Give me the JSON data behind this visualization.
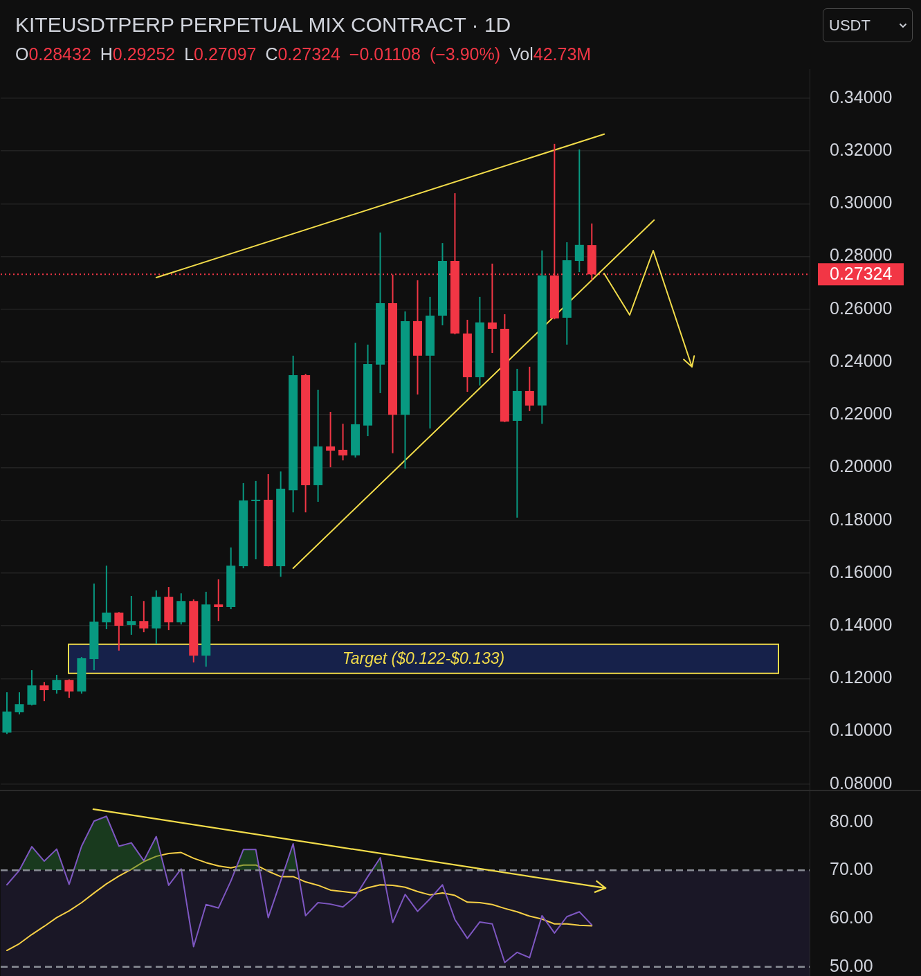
{
  "chart_data": [
    {
      "type": "candlestick",
      "title": "KITEUSDTPERP PERPETUAL MIX CONTRACT · 1D",
      "subtitle": "O0.28432 H0.29252 L0.27097 C0.27324 −0.01108 (−3.90%) Vol42.73M",
      "annotations": [
        "USDT"
      ],
      "categories": [
        null,
        null,
        null,
        null,
        null,
        null,
        null,
        null,
        null,
        null,
        null,
        null,
        null,
        null,
        null,
        null,
        null,
        null,
        null,
        null,
        null,
        null,
        null,
        null,
        null,
        null,
        null,
        null,
        null,
        null,
        null,
        null,
        null,
        null,
        null,
        null,
        null,
        null,
        null,
        null,
        null,
        null,
        null,
        null,
        null,
        null,
        null,
        null,
        null,
        null,
        null,
        null,
        null,
        null,
        null,
        null,
        null,
        null,
        null,
        null,
        null,
        null,
        null,
        null,
        null
      ],
      "ohlc": [
        [
          0.0995,
          0.1148,
          0.099,
          0.1075
        ],
        [
          0.1072,
          0.1148,
          0.1064,
          0.1103
        ],
        [
          0.1101,
          0.1232,
          0.1098,
          0.1174
        ],
        [
          0.1174,
          0.1187,
          0.1114,
          0.1156
        ],
        [
          0.1156,
          0.1214,
          0.1143,
          0.1195
        ],
        [
          0.1195,
          0.1197,
          0.1127,
          0.1151
        ],
        [
          0.1151,
          0.1282,
          0.1143,
          0.1277
        ],
        [
          0.1274,
          0.156,
          0.1232,
          0.1416
        ],
        [
          0.1413,
          0.1628,
          0.1387,
          0.145
        ],
        [
          0.145,
          0.1452,
          0.1306,
          0.14
        ],
        [
          0.1403,
          0.1513,
          0.1366,
          0.1418
        ],
        [
          0.1418,
          0.1494,
          0.1376,
          0.139
        ],
        [
          0.139,
          0.1534,
          0.1332,
          0.151
        ],
        [
          0.151,
          0.1547,
          0.1384,
          0.1413
        ],
        [
          0.1413,
          0.1523,
          0.1405,
          0.1494
        ],
        [
          0.1494,
          0.15,
          0.1261,
          0.1287
        ],
        [
          0.1287,
          0.1529,
          0.1245,
          0.1481
        ],
        [
          0.1481,
          0.1576,
          0.1418,
          0.1471
        ],
        [
          0.1471,
          0.1697,
          0.1463,
          0.1628
        ],
        [
          0.1626,
          0.1941,
          0.1618,
          0.1875
        ],
        [
          0.1875,
          0.1949,
          0.1652,
          0.1878
        ],
        [
          0.1878,
          0.1975,
          0.1625,
          0.1626
        ],
        [
          0.1626,
          0.1985,
          0.1586,
          0.192
        ],
        [
          0.1914,
          0.2424,
          0.183,
          0.235
        ],
        [
          0.235,
          0.2355,
          0.183,
          0.1933
        ],
        [
          0.1933,
          0.2295,
          0.187,
          0.208
        ],
        [
          0.208,
          0.2211,
          0.2001,
          0.2064
        ],
        [
          0.2067,
          0.2166,
          0.2027,
          0.2046
        ],
        [
          0.2046,
          0.2473,
          0.2038,
          0.2164
        ],
        [
          0.2159,
          0.2466,
          0.2119,
          0.2392
        ],
        [
          0.239,
          0.2891,
          0.2282,
          0.2623
        ],
        [
          0.2623,
          0.2731,
          0.2054,
          0.22
        ],
        [
          0.22,
          0.2592,
          0.1996,
          0.2555
        ],
        [
          0.2555,
          0.271,
          0.2277,
          0.2424
        ],
        [
          0.2424,
          0.2647,
          0.2148,
          0.2576
        ],
        [
          0.2576,
          0.2851,
          0.2539,
          0.2783
        ],
        [
          0.2783,
          0.304,
          0.2505,
          0.2508
        ],
        [
          0.2508,
          0.256,
          0.2287,
          0.2342
        ],
        [
          0.2342,
          0.2647,
          0.2311,
          0.255
        ],
        [
          0.255,
          0.2773,
          0.2434,
          0.2526
        ],
        [
          0.2526,
          0.2581,
          0.2172,
          0.2174
        ],
        [
          0.2177,
          0.2374,
          0.181,
          0.229
        ],
        [
          0.229,
          0.2382,
          0.2214,
          0.2235
        ],
        [
          0.2235,
          0.2823,
          0.2166,
          0.2728
        ],
        [
          0.2728,
          0.3227,
          0.2562,
          0.2565
        ],
        [
          0.2568,
          0.2854,
          0.2466,
          0.2786
        ],
        [
          0.2783,
          0.3206,
          0.2741,
          0.2844
        ],
        [
          0.28432,
          0.29252,
          0.27097,
          0.27324
        ],
        null,
        null,
        null,
        null,
        null,
        null,
        null,
        null,
        null,
        null,
        null,
        null,
        null,
        null,
        null,
        null,
        null
      ],
      "colors": [
        "#089981",
        "#089981",
        "#089981",
        "#f23645",
        "#089981",
        "#f23645",
        "#089981",
        "#089981",
        "#089981",
        "#f23645",
        "#089981",
        "#f23645",
        "#089981",
        "#f23645",
        "#089981",
        "#f23645",
        "#089981",
        "#f23645",
        "#089981",
        "#089981",
        "#089981",
        "#f23645",
        "#089981",
        "#089981",
        "#f23645",
        "#089981",
        "#f23645",
        "#f23645",
        "#089981",
        "#089981",
        "#089981",
        "#f23645",
        "#089981",
        "#f23645",
        "#089981",
        "#089981",
        "#f23645",
        "#f23645",
        "#089981",
        "#f23645",
        "#f23645",
        "#089981",
        "#f23645",
        "#089981",
        "#f23645",
        "#089981",
        "#089981",
        "#f23645",
        null,
        null,
        null,
        null,
        null,
        null,
        null,
        null,
        null,
        null,
        null,
        null,
        null,
        null,
        null,
        null,
        null
      ],
      "series": [
        {
          "type": "line",
          "color": "#f2dc4a",
          "values": [
            null,
            null,
            null,
            null,
            null,
            null,
            null,
            null,
            null,
            null,
            null,
            null,
            0.272,
            null,
            null,
            null,
            null,
            null,
            null,
            null,
            null,
            null,
            null,
            null,
            null,
            null,
            null,
            null,
            null,
            null,
            null,
            null,
            null,
            null,
            null,
            null,
            null,
            null,
            null,
            null,
            null,
            null,
            null,
            null,
            null,
            null,
            null,
            null,
            0.3264,
            null,
            null,
            null,
            null,
            null,
            null,
            null,
            null,
            null,
            null,
            null,
            null,
            null,
            null,
            null,
            null
          ]
        },
        {
          "type": "line",
          "color": "#f2dc4a",
          "values": [
            null,
            null,
            null,
            null,
            null,
            null,
            null,
            null,
            null,
            null,
            null,
            null,
            null,
            null,
            null,
            null,
            null,
            null,
            null,
            null,
            null,
            null,
            null,
            0.1618,
            null,
            null,
            null,
            null,
            null,
            null,
            null,
            null,
            null,
            null,
            null,
            null,
            null,
            null,
            null,
            null,
            null,
            null,
            null,
            null,
            null,
            null,
            null,
            null,
            null,
            null,
            null,
            null,
            0.2938,
            null,
            null,
            null,
            null,
            null,
            null,
            null,
            null,
            null,
            null,
            null,
            null
          ]
        }
      ],
      "ylim": [
        0.0773,
        0.351
      ],
      "yticks": [
        {
          "value": 0.08,
          "label": "0.08000"
        },
        {
          "value": 0.1,
          "label": "0.10000"
        },
        {
          "value": 0.12,
          "label": "0.12000"
        },
        {
          "value": 0.14,
          "label": "0.14000"
        },
        {
          "value": 0.16,
          "label": "0.16000"
        },
        {
          "value": 0.18,
          "label": "0.18000"
        },
        {
          "value": 0.2,
          "label": "0.20000"
        },
        {
          "value": 0.22,
          "label": "0.22000"
        },
        {
          "value": 0.24,
          "label": "0.24000"
        },
        {
          "value": 0.26,
          "label": "0.26000"
        },
        {
          "value": 0.28,
          "label": "0.28000"
        },
        {
          "value": 0.3,
          "label": "0.30000"
        },
        {
          "value": 0.32,
          "label": "0.32000"
        },
        {
          "value": 0.34,
          "label": "0.34000"
        }
      ],
      "grid": "y",
      "tick_labels": "y",
      "ref_lines": [
        {
          "axis": "y",
          "value": 0.27324,
          "label": "0.27324",
          "color": "#f23645",
          "line_style": "dotted"
        }
      ],
      "bands": [
        {
          "axis": "y",
          "from": 0.122,
          "to": 0.133,
          "label": "Target ($0.122-$0.133)",
          "color": "#16214a"
        }
      ]
    },
    {
      "type": "line",
      "categories": [
        null,
        null,
        null,
        null,
        null,
        null,
        null,
        null,
        null,
        null,
        null,
        null,
        null,
        null,
        null,
        null,
        null,
        null,
        null,
        null,
        null,
        null,
        null,
        null,
        null,
        null,
        null,
        null,
        null,
        null,
        null,
        null,
        null,
        null,
        null,
        null,
        null,
        null,
        null,
        null,
        null,
        null,
        null,
        null,
        null,
        null,
        null,
        null,
        null,
        null,
        null,
        null,
        null,
        null,
        null,
        null,
        null,
        null,
        null,
        null,
        null,
        null,
        null,
        null,
        null
      ],
      "series": [
        {
          "color": "#7e57c2",
          "values": [
            67.0,
            70.0,
            74.9,
            71.9,
            74.4,
            67.1,
            75.0,
            80.2,
            81.2,
            75.0,
            75.7,
            72.0,
            77.0,
            66.9,
            70.3,
            54.2,
            62.9,
            62.2,
            67.8,
            74.3,
            74.3,
            60.2,
            67.8,
            75.5,
            60.6,
            63.3,
            63.0,
            62.4,
            64.6,
            68.7,
            72.6,
            59.2,
            65.0,
            61.5,
            64.1,
            67.0,
            59.8,
            55.9,
            59.3,
            58.9,
            50.9,
            53.0,
            51.9,
            60.6,
            57.0,
            60.4,
            61.4,
            58.7,
            null,
            null,
            null,
            null,
            null,
            null,
            null,
            null,
            null,
            null,
            null,
            null,
            null,
            null,
            null,
            null,
            null
          ]
        },
        {
          "color": "#f7d046",
          "values": [
            53.4,
            54.8,
            56.7,
            58.4,
            60.2,
            61.6,
            63.3,
            65.3,
            67.2,
            68.8,
            70.2,
            71.8,
            72.9,
            73.5,
            73.7,
            72.5,
            71.6,
            70.9,
            70.5,
            71.1,
            71.1,
            69.8,
            68.7,
            68.7,
            67.6,
            66.9,
            65.9,
            65.6,
            65.3,
            66.4,
            67.0,
            66.9,
            66.5,
            65.6,
            64.9,
            65.3,
            64.8,
            63.4,
            63.3,
            62.9,
            62.1,
            61.4,
            60.5,
            59.9,
            58.9,
            58.9,
            58.6,
            58.5,
            null,
            null,
            null,
            null,
            null,
            null,
            null,
            null,
            null,
            null,
            null,
            null,
            null,
            null,
            null,
            null,
            null
          ]
        }
      ],
      "ylim": [
        48.1,
        86.4
      ],
      "yticks": [
        {
          "value": 50,
          "label": "50.00"
        },
        {
          "value": 60,
          "label": "60.00"
        },
        {
          "value": 70,
          "label": "70.00"
        },
        {
          "value": 80,
          "label": "80.00"
        }
      ],
      "tick_labels": "y",
      "ref_lines": [
        {
          "axis": "y",
          "value": 70,
          "color": "#8a8d96",
          "line_style": "dashed"
        },
        {
          "axis": "y",
          "value": 50,
          "color": "#8a8d96",
          "line_style": "dashed"
        }
      ],
      "bands": [
        {
          "axis": "y",
          "from": 48.1,
          "to": 70,
          "color": "#1a1726"
        }
      ]
    }
  ]
}
